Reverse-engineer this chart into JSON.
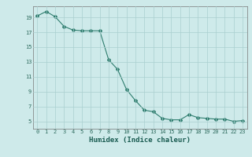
{
  "x": [
    0,
    1,
    2,
    3,
    4,
    5,
    6,
    7,
    8,
    9,
    10,
    11,
    12,
    13,
    14,
    15,
    16,
    17,
    18,
    19,
    20,
    21,
    22,
    23
  ],
  "y": [
    19.2,
    19.8,
    19.1,
    17.8,
    17.3,
    17.2,
    17.2,
    17.2,
    13.3,
    12.0,
    9.3,
    7.8,
    6.5,
    6.3,
    5.4,
    5.2,
    5.2,
    5.9,
    5.5,
    5.4,
    5.3,
    5.3,
    5.0,
    5.1
  ],
  "line_color": "#2e7d6e",
  "marker": "D",
  "marker_size": 2.0,
  "bg_color": "#ceeaea",
  "grid_color": "#aacfcf",
  "xlabel": "Humidex (Indice chaleur)",
  "ylabel_ticks": [
    5,
    7,
    9,
    11,
    13,
    15,
    17,
    19
  ],
  "xlim": [
    -0.5,
    23.5
  ],
  "ylim": [
    4.0,
    20.5
  ],
  "xticks": [
    0,
    1,
    2,
    3,
    4,
    5,
    6,
    7,
    8,
    9,
    10,
    11,
    12,
    13,
    14,
    15,
    16,
    17,
    18,
    19,
    20,
    21,
    22,
    23
  ]
}
